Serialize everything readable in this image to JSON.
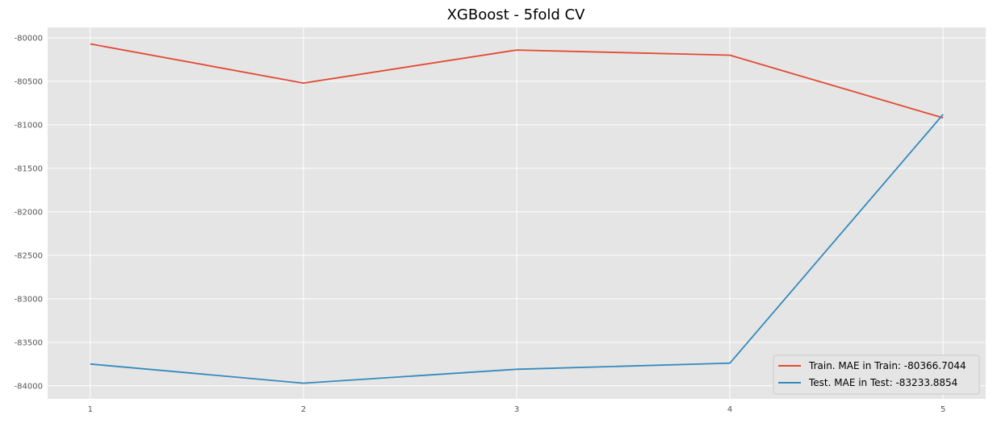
{
  "chart_data": {
    "type": "line",
    "title": "XGBoost - 5fold CV",
    "xlabel": "",
    "ylabel": "",
    "x": [
      1,
      2,
      3,
      4,
      5
    ],
    "x_ticks": [
      "1",
      "2",
      "3",
      "4",
      "5"
    ],
    "y_ticks": [
      "-80000",
      "-80500",
      "-81000",
      "-81500",
      "-82000",
      "-82500",
      "-83000",
      "-83500",
      "-84000"
    ],
    "y_tick_values": [
      -80000,
      -80500,
      -81000,
      -81500,
      -82000,
      -82500,
      -83000,
      -83500,
      -84000
    ],
    "ylim": [
      -84150,
      -79880
    ],
    "xlim": [
      0.8,
      5.2
    ],
    "grid": true,
    "legend_position": "bottom-right",
    "series": [
      {
        "name": "Train. MAE in Train: -80366.7044",
        "color": "#E24A33",
        "values": [
          -80070,
          -80520,
          -80140,
          -80200,
          -80920
        ]
      },
      {
        "name": "Test.  MAE in Test:  -83233.8854",
        "color": "#348ABD",
        "values": [
          -83750,
          -83970,
          -83810,
          -83740,
          -80880
        ]
      }
    ]
  }
}
